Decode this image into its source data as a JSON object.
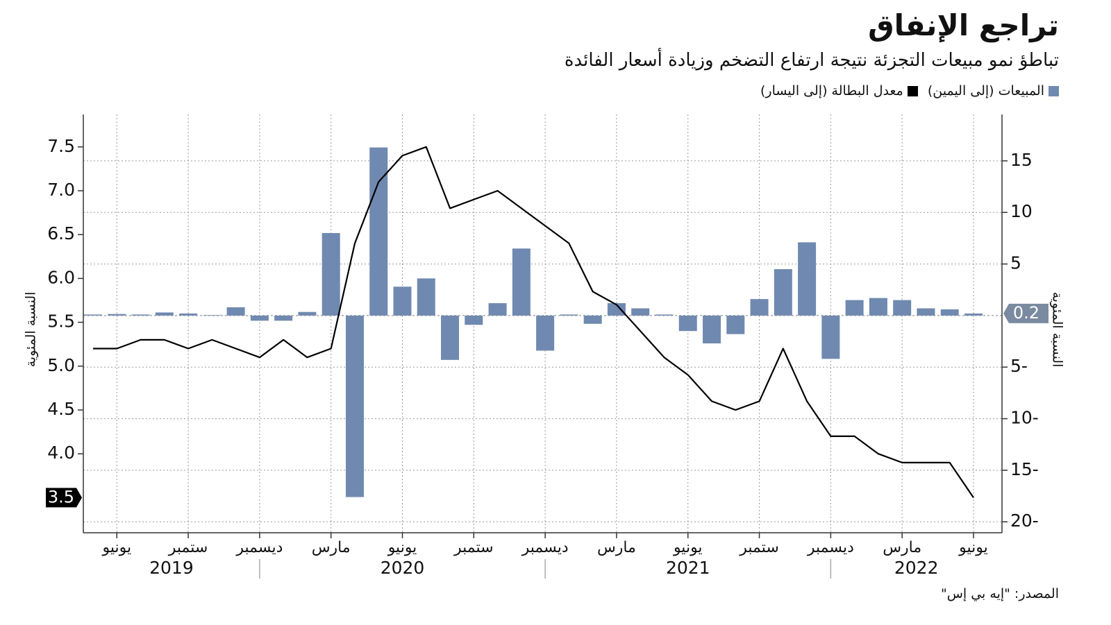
{
  "chart_data": {
    "type": "bar",
    "title": "تراجع الإنفاق",
    "subtitle": "تباطؤ نمو مبيعات التجزئة نتيجة ارتفاع التضخم وزيادة أسعار الفائدة",
    "source": "المصدر: \"إيه بي إس\"",
    "y_label": "النسبة المئوية",
    "y2_label": "النسبة المئوية",
    "x": [
      "2019-05",
      "2019-06",
      "2019-07",
      "2019-08",
      "2019-09",
      "2019-10",
      "2019-11",
      "2019-12",
      "2020-01",
      "2020-02",
      "2020-03",
      "2020-04",
      "2020-05",
      "2020-06",
      "2020-07",
      "2020-08",
      "2020-09",
      "2020-10",
      "2020-11",
      "2020-12",
      "2021-01",
      "2021-02",
      "2021-03",
      "2021-04",
      "2021-05",
      "2021-06",
      "2021-07",
      "2021-08",
      "2021-09",
      "2021-10",
      "2021-11",
      "2021-12",
      "2022-01",
      "2022-02",
      "2022-03",
      "2022-04",
      "2022-05",
      "2022-06"
    ],
    "xticks": [
      {
        "value": "2019-06",
        "label": "يونيو"
      },
      {
        "value": "2019-09",
        "label": "ستمبر"
      },
      {
        "value": "2019-12",
        "label": "ديسمبر"
      },
      {
        "value": "2020-03",
        "label": "مارس"
      },
      {
        "value": "2020-06",
        "label": "يونيو"
      },
      {
        "value": "2020-09",
        "label": "ستمبر"
      },
      {
        "value": "2020-12",
        "label": "ديسمبر"
      },
      {
        "value": "2021-03",
        "label": "مارس"
      },
      {
        "value": "2021-06",
        "label": "يونيو"
      },
      {
        "value": "2021-09",
        "label": "ستمبر"
      },
      {
        "value": "2021-12",
        "label": "ديسمبر"
      },
      {
        "value": "2022-03",
        "label": "مارس"
      },
      {
        "value": "2022-06",
        "label": "يونيو"
      }
    ],
    "years": [
      "2019",
      "2020",
      "2021",
      "2022"
    ],
    "ylim": [
      3.1,
      7.87
    ],
    "yticks": [
      {
        "value": 4,
        "label": "4.0"
      },
      4.5,
      {
        "value": 5,
        "label": "5.0"
      },
      5.5,
      {
        "value": 6,
        "label": "6.0"
      },
      6.5,
      {
        "value": 7,
        "label": "7.0"
      },
      7.5
    ],
    "y2lim": [
      -21.06,
      19.5
    ],
    "y2ticks": [
      15,
      10,
      5,
      {
        "value": -5,
        "label": "5-"
      },
      {
        "value": -10,
        "label": "10-"
      },
      {
        "value": -15,
        "label": "15-"
      },
      {
        "value": -20,
        "label": "20-"
      }
    ],
    "grid": true,
    "legend": "top-right",
    "series": [
      {
        "name": "المبيعات (إلى اليمين)",
        "type": "bar",
        "axis": "y2",
        "color": "#7089b0",
        "values": [
          0.1,
          0.15,
          0.1,
          0.3,
          0.2,
          0.05,
          0.8,
          -0.5,
          -0.5,
          0.35,
          8.0,
          -17.6,
          16.3,
          2.8,
          3.6,
          -4.3,
          -0.9,
          1.2,
          6.5,
          -3.4,
          0.1,
          -0.8,
          1.2,
          0.7,
          0.1,
          -1.5,
          -2.7,
          -1.8,
          1.6,
          4.5,
          7.1,
          -4.2,
          1.5,
          1.7,
          1.5,
          0.7,
          0.6,
          0.2
        ]
      },
      {
        "name": "معدل البطالة (إلى اليسار)",
        "type": "line",
        "axis": "y",
        "color": "#000000",
        "values": [
          5.2,
          5.2,
          5.3,
          5.3,
          5.2,
          5.3,
          5.2,
          5.1,
          5.3,
          5.1,
          5.2,
          6.4,
          7.1,
          7.4,
          7.5,
          6.8,
          6.9,
          7.0,
          6.8,
          6.6,
          6.4,
          5.85,
          5.7,
          5.4,
          5.1,
          4.9,
          4.6,
          4.5,
          4.6,
          5.2,
          4.6,
          4.2,
          4.2,
          4.0,
          3.9,
          3.9,
          3.9,
          3.5
        ]
      }
    ]
  }
}
